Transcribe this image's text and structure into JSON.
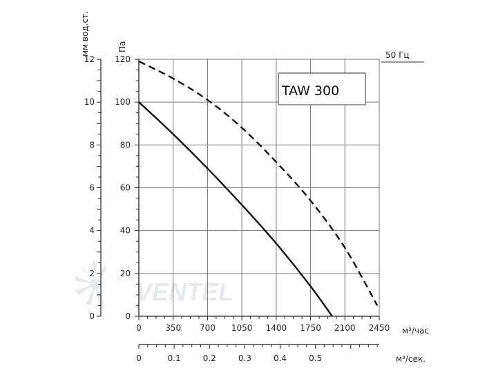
{
  "chart_data": {
    "type": "line",
    "title": "",
    "model_label": "TAW 300",
    "frequency_label": "50 Гц",
    "watermark": "VENTEL",
    "x_primary": {
      "label": "м³/час",
      "ticks": [
        0,
        350,
        700,
        1050,
        1400,
        1750,
        2100,
        2450
      ],
      "range": [
        0,
        2450
      ]
    },
    "x_secondary": {
      "label": "м³/сек.",
      "ticks": [
        "0",
        "0.1",
        "0.2",
        "0.3",
        "0.4",
        "0.5"
      ],
      "values": [
        0,
        0.1,
        0.2,
        0.3,
        0.4,
        0.5
      ]
    },
    "y_primary": {
      "label": "Па",
      "ticks": [
        0,
        20,
        40,
        60,
        80,
        100,
        120
      ],
      "range": [
        0,
        120
      ]
    },
    "y_secondary": {
      "label": "мм вод.ст.",
      "ticks": [
        0,
        2,
        4,
        6,
        8,
        10,
        12
      ],
      "range": [
        0,
        12
      ]
    },
    "grid": true,
    "series": [
      {
        "style": "solid",
        "x": [
          0,
          350,
          700,
          1050,
          1400,
          1750,
          1970
        ],
        "y": [
          100,
          85,
          69,
          52,
          34,
          14,
          0
        ]
      },
      {
        "style": "dashed",
        "x": [
          0,
          350,
          700,
          1050,
          1400,
          1750,
          2100,
          2430
        ],
        "y": [
          119,
          111,
          101,
          88,
          72,
          54,
          32,
          5
        ]
      }
    ]
  }
}
